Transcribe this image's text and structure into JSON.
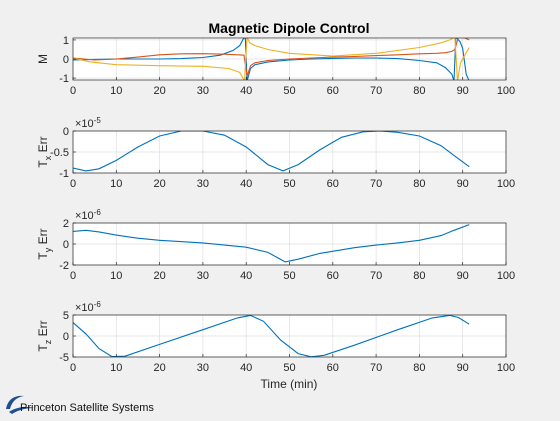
{
  "colors": {
    "background": "#f0f0f0",
    "axes_bg": "#ffffff",
    "grid": "#dfdfdf",
    "blue": "#0072bd",
    "orange": "#d95319",
    "yellow": "#edb120",
    "logo_blue": "#1f4e91"
  },
  "footer": {
    "brand": "Princeton Satellite Systems",
    "logo_icon": "orbit-swoosh-icon"
  },
  "chart_data": [
    {
      "type": "line",
      "title": "Magnetic Dipole Control",
      "xlabel": "",
      "ylabel": "M",
      "xlim": [
        0,
        100
      ],
      "ylim": [
        -1.1,
        1.1
      ],
      "xticks": [
        0,
        10,
        20,
        30,
        40,
        50,
        60,
        70,
        80,
        90,
        100
      ],
      "yticks": [
        -1,
        0,
        1
      ],
      "grid": true,
      "series": [
        {
          "color": "#0072bd",
          "x": [
            0,
            5,
            10,
            15,
            20,
            25,
            30,
            34,
            37,
            38.5,
            39.3,
            39.8,
            40.2,
            41,
            42,
            45,
            50,
            55,
            60,
            65,
            70,
            75,
            80,
            84,
            86,
            87.5,
            88,
            88.4,
            89.4,
            90,
            90.8,
            91.5
          ],
          "y": [
            -0.05,
            -0.02,
            0.0,
            0.0,
            0.0,
            0.02,
            0.08,
            0.2,
            0.45,
            0.7,
            1.05,
            1.15,
            -1.15,
            -0.5,
            -0.3,
            -0.15,
            -0.05,
            0.0,
            0.03,
            0.05,
            0.05,
            0.02,
            -0.08,
            -0.2,
            -0.45,
            -0.8,
            -1.15,
            1.15,
            0.9,
            0.55,
            -0.8,
            -1.15
          ]
        },
        {
          "color": "#d95319",
          "x": [
            0,
            5,
            10,
            15,
            20,
            25,
            30,
            35,
            38,
            39.5,
            40.2,
            41,
            42,
            45,
            50,
            55,
            60,
            65,
            70,
            75,
            80,
            84,
            86,
            87.5,
            88.2,
            89,
            90.5,
            91.5
          ],
          "y": [
            0.05,
            -0.05,
            0.0,
            0.1,
            0.22,
            0.27,
            0.28,
            0.25,
            0.22,
            0.2,
            -0.9,
            -0.35,
            -0.2,
            -0.08,
            0.0,
            0.05,
            0.1,
            0.13,
            0.18,
            0.22,
            0.27,
            0.3,
            0.33,
            0.4,
            0.5,
            1.15,
            1.1,
            1.0
          ]
        },
        {
          "color": "#edb120",
          "x": [
            0,
            4,
            10,
            20,
            30,
            36,
            38.5,
            39.6,
            40.2,
            40.8,
            42,
            45,
            50,
            60,
            70,
            80,
            85,
            87,
            88.2,
            88.8,
            89.5,
            91.5
          ],
          "y": [
            0.05,
            -0.15,
            -0.3,
            -0.35,
            -0.38,
            -0.5,
            -0.7,
            -1.15,
            1.15,
            0.85,
            0.7,
            0.5,
            0.3,
            0.15,
            0.3,
            0.6,
            0.85,
            1.0,
            1.15,
            -1.15,
            -0.2,
            0.6
          ]
        }
      ]
    },
    {
      "type": "line",
      "xlabel": "",
      "ylabel": "T_x Err",
      "ylabel_main": "T",
      "ylabel_sub": "x",
      "ylabel_tail": " Err",
      "exponent": "×10",
      "exponent_power": "-5",
      "xlim": [
        0,
        100
      ],
      "ylim": [
        -1,
        0
      ],
      "xticks": [
        0,
        10,
        20,
        30,
        40,
        50,
        60,
        70,
        80,
        90,
        100
      ],
      "yticks": [
        -1,
        -0.5,
        0
      ],
      "ytick_labels": [
        "-1",
        "-0.5",
        "0"
      ],
      "grid": true,
      "series": [
        {
          "color": "#0072bd",
          "x": [
            0,
            3,
            6,
            10,
            15,
            20,
            25,
            30,
            35,
            40,
            45,
            48.5,
            52,
            57,
            62,
            67,
            71,
            75,
            80,
            85,
            88,
            91.5
          ],
          "y": [
            -0.88,
            -0.95,
            -0.9,
            -0.7,
            -0.38,
            -0.12,
            0.0,
            0.0,
            -0.1,
            -0.38,
            -0.8,
            -0.95,
            -0.8,
            -0.45,
            -0.15,
            -0.02,
            0.0,
            -0.03,
            -0.12,
            -0.35,
            -0.58,
            -0.85
          ]
        }
      ]
    },
    {
      "type": "line",
      "xlabel": "",
      "ylabel": "T_y Err",
      "ylabel_main": "T",
      "ylabel_sub": "y",
      "ylabel_tail": " Err",
      "exponent": "×10",
      "exponent_power": "-6",
      "xlim": [
        0,
        100
      ],
      "ylim": [
        -2,
        2
      ],
      "xticks": [
        0,
        10,
        20,
        30,
        40,
        50,
        60,
        70,
        80,
        90,
        100
      ],
      "yticks": [
        -2,
        0,
        2
      ],
      "ytick_labels": [
        "-2",
        "0",
        "2"
      ],
      "grid": true,
      "series": [
        {
          "color": "#0072bd",
          "x": [
            0,
            3,
            6,
            10,
            15,
            20,
            30,
            40,
            45,
            49,
            52,
            57,
            65,
            70,
            75,
            80,
            85,
            88,
            91.5
          ],
          "y": [
            1.2,
            1.3,
            1.15,
            0.85,
            0.55,
            0.35,
            0.1,
            -0.3,
            -0.8,
            -1.7,
            -1.45,
            -0.9,
            -0.35,
            -0.1,
            0.1,
            0.35,
            0.8,
            1.3,
            1.85
          ]
        }
      ]
    },
    {
      "type": "line",
      "xlabel": "Time (min)",
      "ylabel": "T_z Err",
      "ylabel_main": "T",
      "ylabel_sub": "z",
      "ylabel_tail": " Err",
      "exponent": "×10",
      "exponent_power": "-6",
      "xlim": [
        0,
        100
      ],
      "ylim": [
        -5,
        5
      ],
      "xticks": [
        0,
        10,
        20,
        30,
        40,
        50,
        60,
        70,
        80,
        90,
        100
      ],
      "yticks": [
        -5,
        0,
        5
      ],
      "ytick_labels": [
        "-5",
        "0",
        "5"
      ],
      "grid": true,
      "series": [
        {
          "color": "#0072bd",
          "x": [
            0,
            3,
            6,
            9,
            12,
            20,
            30,
            38,
            41,
            44,
            48,
            52,
            55,
            58,
            65,
            75,
            83,
            87,
            89,
            91.5
          ],
          "y": [
            3.2,
            0.5,
            -3.0,
            -4.9,
            -4.8,
            -2.0,
            1.5,
            4.3,
            4.9,
            3.5,
            -1.0,
            -4.2,
            -4.95,
            -4.6,
            -2.2,
            1.5,
            4.3,
            4.9,
            4.4,
            2.8
          ]
        }
      ]
    }
  ]
}
